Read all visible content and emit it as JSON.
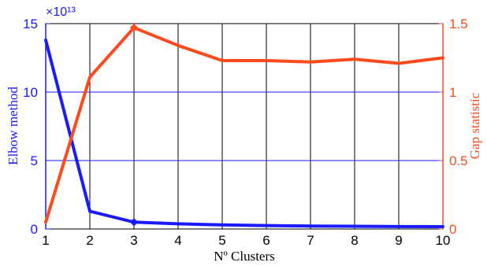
{
  "chart_data": {
    "type": "line",
    "xlabel": "Nº Clusters",
    "x": [
      1,
      2,
      3,
      4,
      5,
      6,
      7,
      8,
      9,
      10
    ],
    "xlim": [
      1,
      10
    ],
    "x_ticks": [
      "1",
      "2",
      "3",
      "4",
      "5",
      "6",
      "7",
      "8",
      "9",
      "10"
    ],
    "grid": "vertical lines at each x tick; horizontal lines at left-axis ticks",
    "y_left": {
      "label": "Elbow method",
      "color": "#1a1aff",
      "ylim": [
        0,
        15
      ],
      "ticks": [
        "0",
        "5",
        "10",
        "15"
      ],
      "exponent_label": "×10¹³"
    },
    "y_right": {
      "label": "Gap statistic",
      "color": "#ff4a1c",
      "ylim": [
        0,
        1.5
      ],
      "ticks": [
        "0",
        "0.5",
        "1",
        "1.5"
      ]
    },
    "series": [
      {
        "name": "Elbow method",
        "axis": "left",
        "color": "#1a1aff",
        "values": [
          13.8,
          1.3,
          0.5,
          0.38,
          0.3,
          0.25,
          0.22,
          0.2,
          0.18,
          0.17
        ],
        "marker_at_x": 3
      },
      {
        "name": "Gap statistic",
        "axis": "right",
        "color": "#ff4a1c",
        "values": [
          0.05,
          1.11,
          1.47,
          1.34,
          1.23,
          1.23,
          1.22,
          1.24,
          1.21,
          1.25
        ],
        "marker_at_x": 3
      }
    ]
  }
}
